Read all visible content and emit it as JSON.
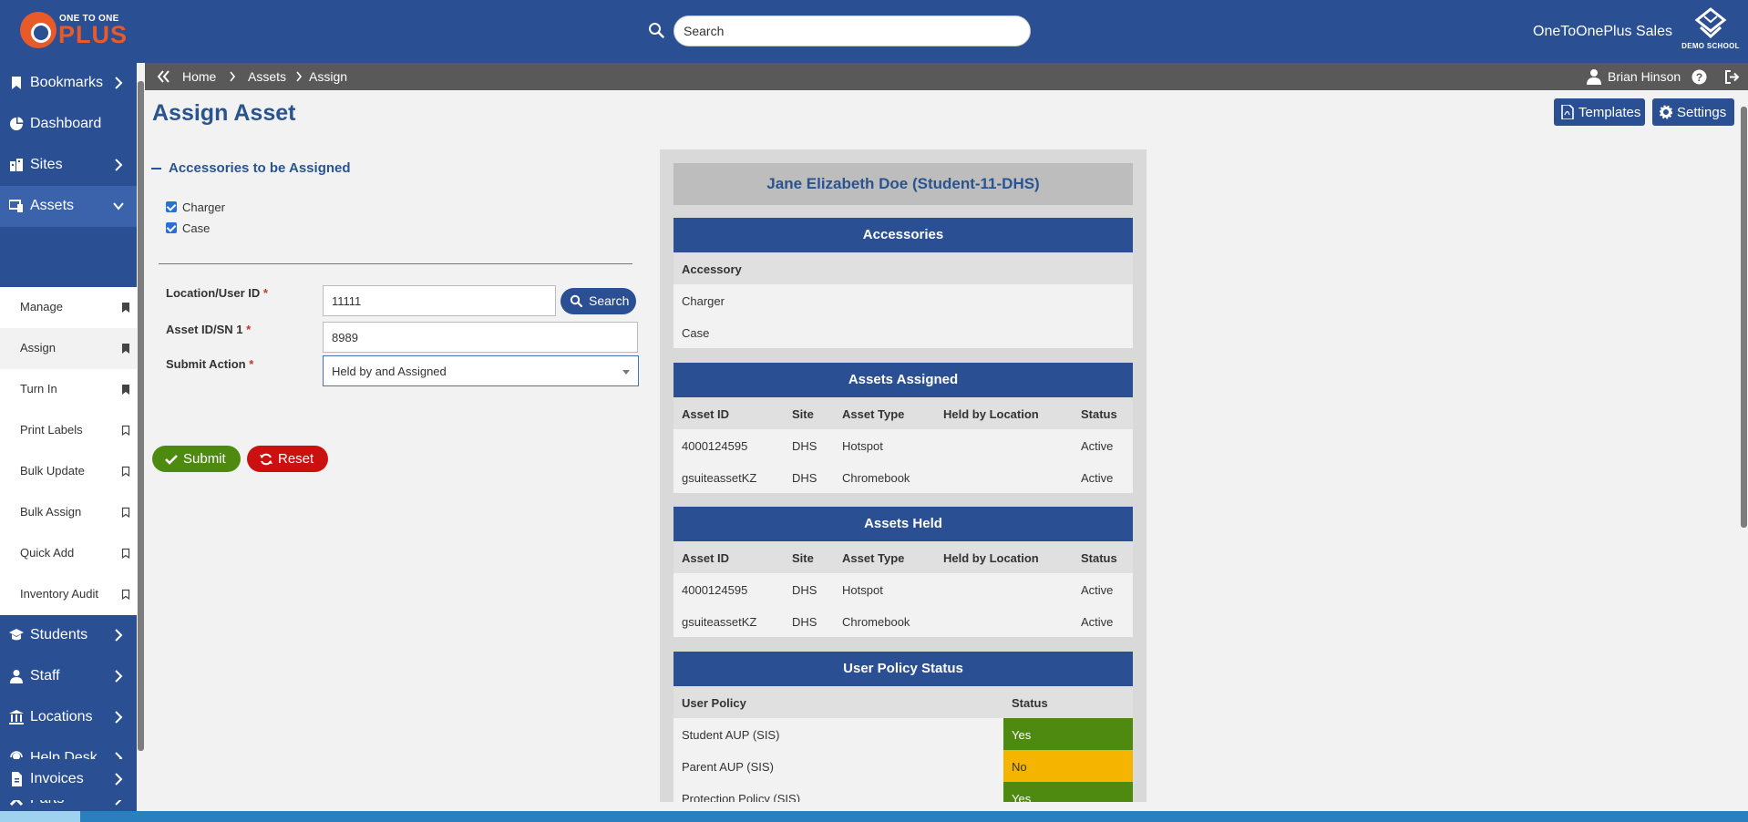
{
  "header": {
    "logo_top": "ONE TO ONE",
    "logo_bottom": "PLUS",
    "search_placeholder": "Search",
    "account_name": "OneToOnePlus Sales",
    "district_text": "DEMO SCHOOL"
  },
  "sidebar": {
    "items": [
      {
        "label": "Bookmarks",
        "icon": "bookmark-icon"
      },
      {
        "label": "Dashboard",
        "icon": "dashboard-icon"
      },
      {
        "label": "Sites",
        "icon": "sites-icon"
      },
      {
        "label": "Assets",
        "icon": "assets-icon"
      },
      {
        "label": "Students",
        "icon": "students-icon"
      },
      {
        "label": "Staff",
        "icon": "staff-icon"
      },
      {
        "label": "Locations",
        "icon": "locations-icon"
      },
      {
        "label": "Help Desk",
        "icon": "help-desk-icon"
      },
      {
        "label": "Parts",
        "icon": "parts-icon"
      },
      {
        "label": "Invoices",
        "icon": "invoices-icon"
      }
    ],
    "assets_submenu": [
      {
        "label": "Manage",
        "bookmarked": true
      },
      {
        "label": "Assign",
        "bookmarked": true
      },
      {
        "label": "Turn In",
        "bookmarked": true
      },
      {
        "label": "Print Labels",
        "bookmarked": false
      },
      {
        "label": "Bulk Update",
        "bookmarked": false
      },
      {
        "label": "Bulk Assign",
        "bookmarked": false
      },
      {
        "label": "Quick Add",
        "bookmarked": false
      },
      {
        "label": "Inventory Audit",
        "bookmarked": false
      }
    ]
  },
  "breadcrumb": {
    "items": [
      "Home",
      "Assets",
      "Assign"
    ],
    "user": "Brian Hinson"
  },
  "page": {
    "title": "Assign Asset",
    "templates_label": "Templates",
    "settings_label": "Settings"
  },
  "form": {
    "accessories_heading": "Accessories to be Assigned",
    "accessories": [
      {
        "label": "Charger",
        "checked": true
      },
      {
        "label": "Case",
        "checked": true
      }
    ],
    "location_label": "Location/User ID",
    "location_value": "11111",
    "search_button": "Search",
    "asset_label": "Asset ID/SN 1",
    "asset_value": "8989",
    "action_label": "Submit Action",
    "action_value": "Held by and Assigned",
    "required_mark": "*",
    "submit_label": "Submit",
    "reset_label": "Reset"
  },
  "panel": {
    "student_name": "Jane Elizabeth Doe (Student-11-DHS)",
    "accessories": {
      "title": "Accessories",
      "header": "Accessory",
      "rows": [
        "Charger",
        "Case"
      ]
    },
    "assets_assigned": {
      "title": "Assets Assigned",
      "headers": [
        "Asset ID",
        "Site",
        "Asset Type",
        "Held by Location",
        "Status"
      ],
      "rows": [
        [
          "4000124595",
          "DHS",
          "Hotspot",
          "",
          "Active"
        ],
        [
          "gsuiteassetKZ",
          "DHS",
          "Chromebook",
          "",
          "Active"
        ]
      ]
    },
    "assets_held": {
      "title": "Assets Held",
      "headers": [
        "Asset ID",
        "Site",
        "Asset Type",
        "Held by Location",
        "Status"
      ],
      "rows": [
        [
          "4000124595",
          "DHS",
          "Hotspot",
          "",
          "Active"
        ],
        [
          "gsuiteassetKZ",
          "DHS",
          "Chromebook",
          "",
          "Active"
        ]
      ]
    },
    "user_policy": {
      "title": "User Policy Status",
      "headers": [
        "User Policy",
        "Status"
      ],
      "rows": [
        {
          "policy": "Student AUP (SIS)",
          "status": "Yes",
          "color": "#4f8a10"
        },
        {
          "policy": "Parent AUP (SIS)",
          "status": "No",
          "color": "#f5b400"
        },
        {
          "policy": "Protection Policy (SIS)",
          "status": "Yes",
          "color": "#4f8a10"
        }
      ]
    }
  },
  "colors": {
    "brand_blue": "#2a4f93",
    "brand_orange": "#e85a2a",
    "success_green": "#4f8a10",
    "danger_red": "#cc1010",
    "warning_yellow": "#f5b400"
  }
}
